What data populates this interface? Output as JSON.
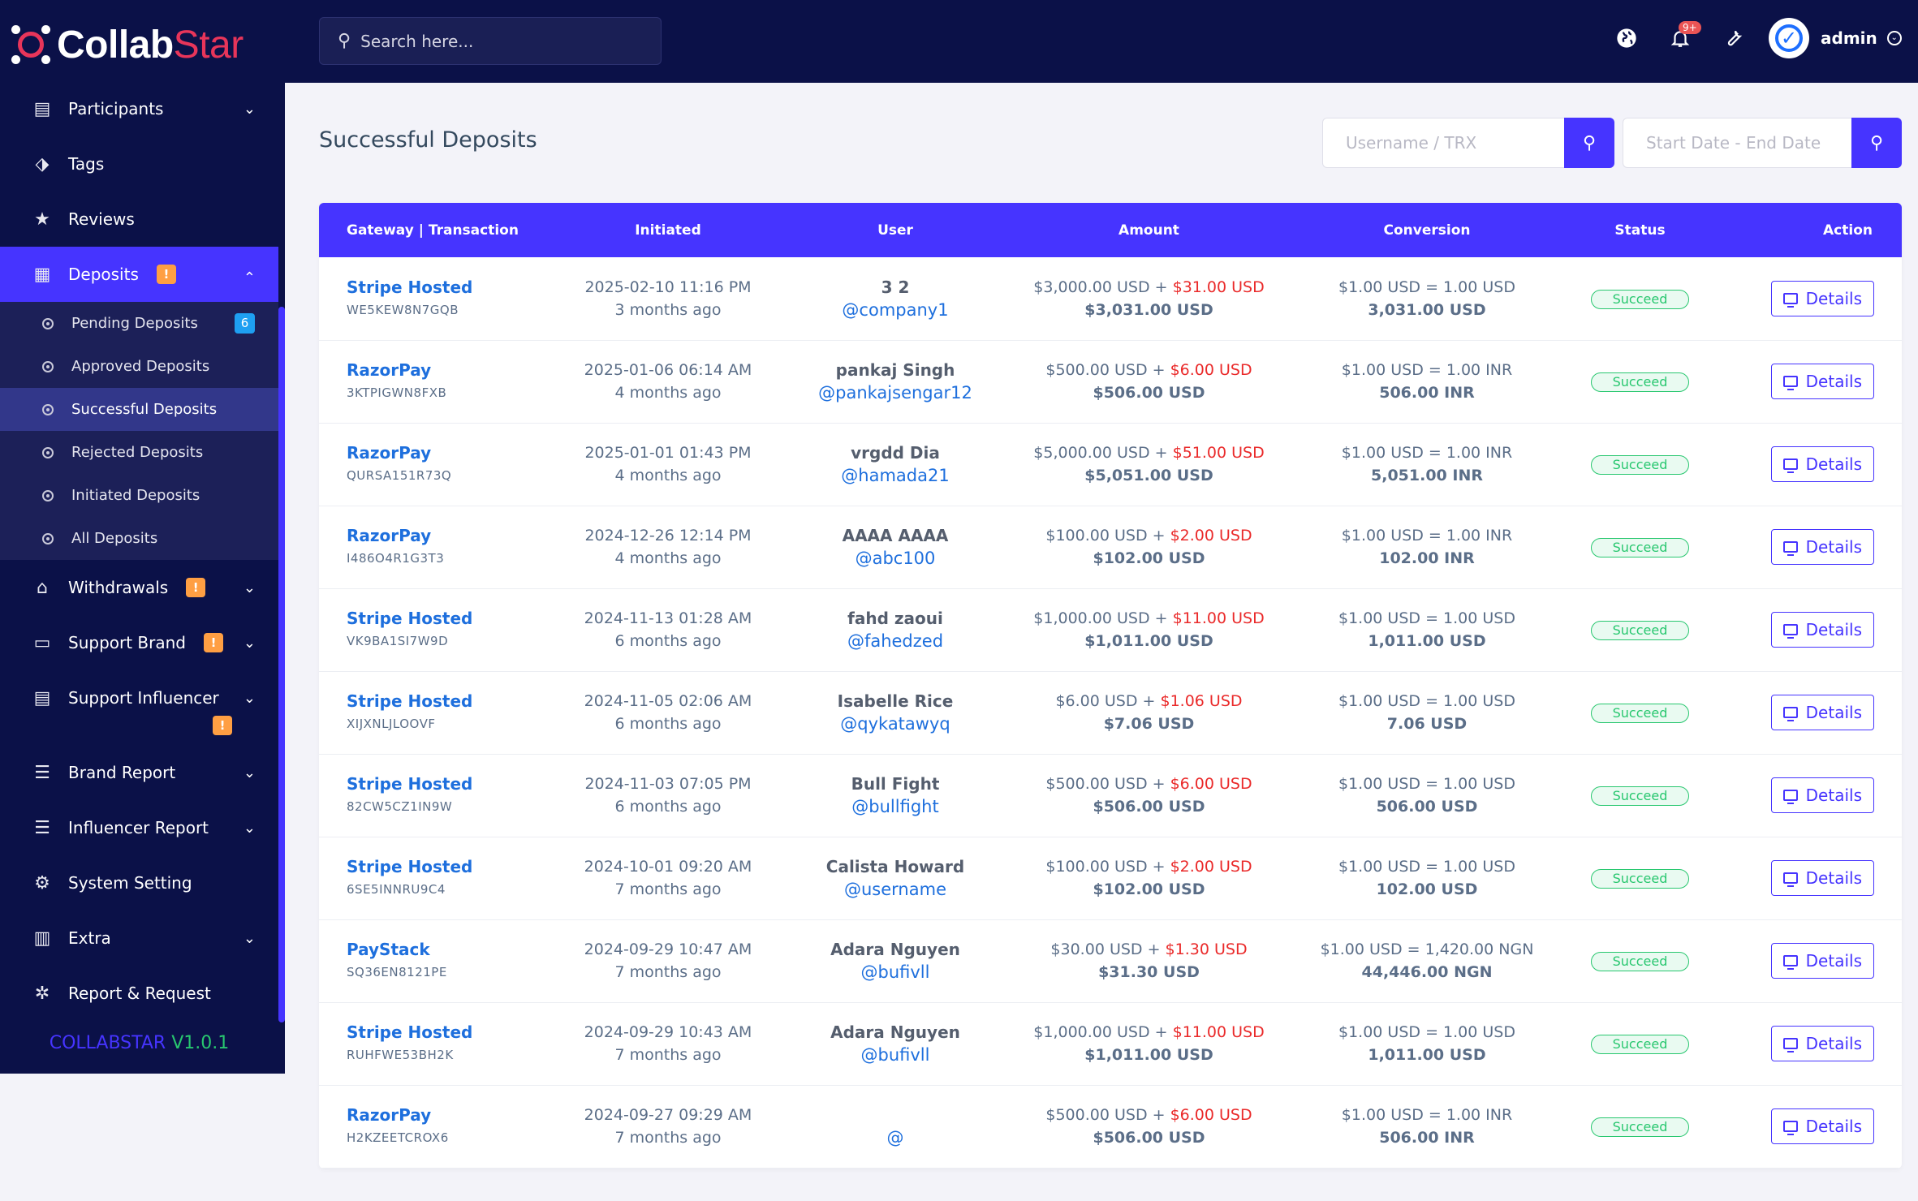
{
  "brand": {
    "name_part1": "Collab",
    "name_part2": "Star"
  },
  "sidebar": {
    "items": [
      {
        "label": "Participants",
        "icon": "clipboard-icon",
        "has_caret": true
      },
      {
        "label": "Tags",
        "icon": "tag-icon"
      },
      {
        "label": "Reviews",
        "icon": "star-icon"
      },
      {
        "label": "Deposits",
        "icon": "bill-icon",
        "has_caret": true,
        "warn": "!",
        "active": true
      },
      {
        "label": "Withdrawals",
        "icon": "bank-icon",
        "has_caret": true,
        "warn": "!"
      },
      {
        "label": "Support Brand",
        "icon": "ticket-icon",
        "has_caret": true,
        "warn": "!"
      },
      {
        "label": "Support Influencer",
        "icon": "clipboard-icon",
        "has_caret": true,
        "warn": "!"
      },
      {
        "label": "Brand Report",
        "icon": "list-icon",
        "has_caret": true
      },
      {
        "label": "Influencer Report",
        "icon": "list-icon",
        "has_caret": true
      },
      {
        "label": "System Setting",
        "icon": "gear-icon"
      },
      {
        "label": "Extra",
        "icon": "server-icon",
        "has_caret": true
      },
      {
        "label": "Report & Request",
        "icon": "bug-icon"
      }
    ],
    "deposit_sub": [
      {
        "label": "Pending Deposits",
        "count": "6"
      },
      {
        "label": "Approved Deposits"
      },
      {
        "label": "Successful Deposits",
        "active": true
      },
      {
        "label": "Rejected Deposits"
      },
      {
        "label": "Initiated Deposits"
      },
      {
        "label": "All Deposits"
      }
    ],
    "version_name": "COLLABSTAR",
    "version_num": "V1.0.1"
  },
  "topbar": {
    "search_placeholder": "Search here...",
    "notif_count": "9+",
    "user": "admin"
  },
  "page": {
    "title": "Successful Deposits",
    "filter_user_placeholder": "Username / TRX",
    "filter_date_placeholder": "Start Date - End Date"
  },
  "table": {
    "headers": [
      "Gateway | Transaction",
      "Initiated",
      "User",
      "Amount",
      "Conversion",
      "Status",
      "Action"
    ],
    "status_label": "Succeed",
    "action_label": "Details",
    "rows": [
      {
        "gateway": "Stripe Hosted",
        "trx": "WE5KEW8N7GQB",
        "date": "2025-02-10 11:16 PM",
        "ago": "3 months ago",
        "name": "3 2",
        "handle": "@company1",
        "amount": "$3,000.00 USD +",
        "charge": "$31.00 USD",
        "total": "$3,031.00 USD",
        "rate": "$1.00 USD = 1.00 USD",
        "converted": "3,031.00 USD"
      },
      {
        "gateway": "RazorPay",
        "trx": "3KTPIGWN8FXB",
        "date": "2025-01-06 06:14 AM",
        "ago": "4 months ago",
        "name": "pankaj Singh",
        "handle": "@pankajsengar12",
        "amount": "$500.00 USD +",
        "charge": "$6.00 USD",
        "total": "$506.00 USD",
        "rate": "$1.00 USD = 1.00 INR",
        "converted": "506.00 INR"
      },
      {
        "gateway": "RazorPay",
        "trx": "QURSA151R73Q",
        "date": "2025-01-01 01:43 PM",
        "ago": "4 months ago",
        "name": "vrgdd Dia",
        "handle": "@hamada21",
        "amount": "$5,000.00 USD +",
        "charge": "$51.00 USD",
        "total": "$5,051.00 USD",
        "rate": "$1.00 USD = 1.00 INR",
        "converted": "5,051.00 INR"
      },
      {
        "gateway": "RazorPay",
        "trx": "I486O4R1G3T3",
        "date": "2024-12-26 12:14 PM",
        "ago": "4 months ago",
        "name": "AAAA AAAA",
        "handle": "@abc100",
        "amount": "$100.00 USD +",
        "charge": "$2.00 USD",
        "total": "$102.00 USD",
        "rate": "$1.00 USD = 1.00 INR",
        "converted": "102.00 INR"
      },
      {
        "gateway": "Stripe Hosted",
        "trx": "VK9BA1SI7W9D",
        "date": "2024-11-13 01:28 AM",
        "ago": "6 months ago",
        "name": "fahd zaoui",
        "handle": "@fahedzed",
        "amount": "$1,000.00 USD +",
        "charge": "$11.00 USD",
        "total": "$1,011.00 USD",
        "rate": "$1.00 USD = 1.00 USD",
        "converted": "1,011.00 USD"
      },
      {
        "gateway": "Stripe Hosted",
        "trx": "XIJXNLJLOOVF",
        "date": "2024-11-05 02:06 AM",
        "ago": "6 months ago",
        "name": "Isabelle Rice",
        "handle": "@qykatawyq",
        "amount": "$6.00 USD +",
        "charge": "$1.06 USD",
        "total": "$7.06 USD",
        "rate": "$1.00 USD = 1.00 USD",
        "converted": "7.06 USD"
      },
      {
        "gateway": "Stripe Hosted",
        "trx": "82CW5CZ1IN9W",
        "date": "2024-11-03 07:05 PM",
        "ago": "6 months ago",
        "name": "Bull Fight",
        "handle": "@bullfight",
        "amount": "$500.00 USD +",
        "charge": "$6.00 USD",
        "total": "$506.00 USD",
        "rate": "$1.00 USD = 1.00 USD",
        "converted": "506.00 USD"
      },
      {
        "gateway": "Stripe Hosted",
        "trx": "6SE5INNRU9C4",
        "date": "2024-10-01 09:20 AM",
        "ago": "7 months ago",
        "name": "Calista Howard",
        "handle": "@username",
        "amount": "$100.00 USD +",
        "charge": "$2.00 USD",
        "total": "$102.00 USD",
        "rate": "$1.00 USD = 1.00 USD",
        "converted": "102.00 USD"
      },
      {
        "gateway": "PayStack",
        "trx": "SQ36EN8121PE",
        "date": "2024-09-29 10:47 AM",
        "ago": "7 months ago",
        "name": "Adara Nguyen",
        "handle": "@bufivll",
        "amount": "$30.00 USD +",
        "charge": "$1.30 USD",
        "total": "$31.30 USD",
        "rate": "$1.00 USD = 1,420.00 NGN",
        "converted": "44,446.00 NGN"
      },
      {
        "gateway": "Stripe Hosted",
        "trx": "RUHFWE53BH2K",
        "date": "2024-09-29 10:43 AM",
        "ago": "7 months ago",
        "name": "Adara Nguyen",
        "handle": "@bufivll",
        "amount": "$1,000.00 USD +",
        "charge": "$11.00 USD",
        "total": "$1,011.00 USD",
        "rate": "$1.00 USD = 1.00 USD",
        "converted": "1,011.00 USD"
      },
      {
        "gateway": "RazorPay",
        "trx": "H2KZEETCROX6",
        "date": "2024-09-27 09:29 AM",
        "ago": "7 months ago",
        "name": "",
        "handle": "@",
        "amount": "$500.00 USD +",
        "charge": "$6.00 USD",
        "total": "$506.00 USD",
        "rate": "$1.00 USD = 1.00 INR",
        "converted": "506.00 INR"
      }
    ]
  },
  "colors": {
    "primary": "#4634ff",
    "sidebar_bg": "#0b1148",
    "success": "#28c76f",
    "warning": "#ff9f43",
    "danger": "#ea2a2a",
    "info": "#1e9ff2"
  }
}
